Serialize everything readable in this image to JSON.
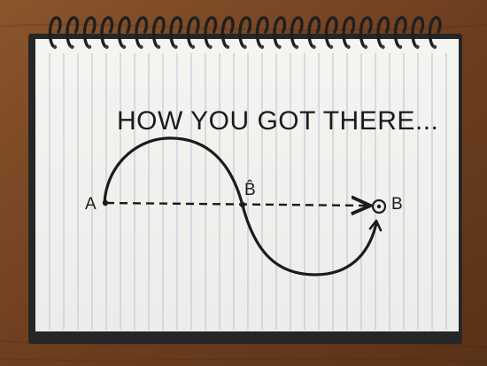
{
  "sketch": {
    "title": "HOW YOU GOT THERE...",
    "labels": {
      "start": "A",
      "middle": "B̂",
      "end": "B"
    }
  },
  "colors": {
    "wood": "#7a4a26",
    "paper": "#f7f6f2",
    "rule_line": "#b8c1cf",
    "ink": "#1b1b1b",
    "binding": "#1f1f1f"
  }
}
